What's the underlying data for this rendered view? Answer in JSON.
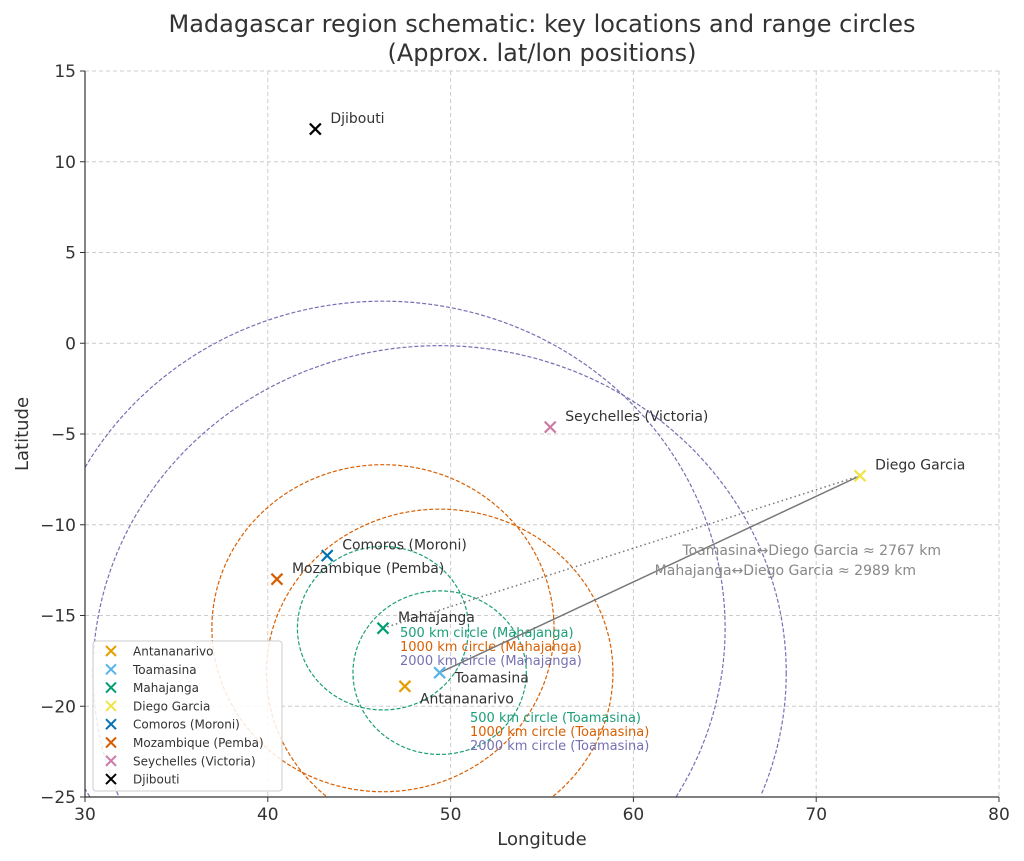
{
  "chart_data": {
    "type": "scatter",
    "title": "Madagascar region schematic: key locations and range circles",
    "subtitle": "(Approx. lat/lon positions)",
    "xlabel": "Longitude",
    "ylabel": "Latitude",
    "xlim": [
      30,
      80
    ],
    "ylim": [
      -25,
      15
    ],
    "xticks": [
      30,
      40,
      50,
      60,
      70,
      80
    ],
    "yticks": [
      15,
      10,
      5,
      0,
      -5,
      -10,
      -15,
      -20,
      -25
    ],
    "grid": true,
    "legend_position": "lower-left",
    "points": [
      {
        "name": "Antananarivo",
        "lon": 47.5,
        "lat": -18.9,
        "color": "#E69F00"
      },
      {
        "name": "Toamasina",
        "lon": 49.4,
        "lat": -18.15,
        "color": "#56B4E9"
      },
      {
        "name": "Mahajanga",
        "lon": 46.3,
        "lat": -15.7,
        "color": "#009E73"
      },
      {
        "name": "Diego Garcia",
        "lon": 72.4,
        "lat": -7.3,
        "color": "#F0E442"
      },
      {
        "name": "Comoros (Moroni)",
        "lon": 43.25,
        "lat": -11.7,
        "color": "#0072B2"
      },
      {
        "name": "Mozambique (Pemba)",
        "lon": 40.5,
        "lat": -13.0,
        "color": "#D55E00"
      },
      {
        "name": "Seychelles (Victoria)",
        "lon": 55.45,
        "lat": -4.62,
        "color": "#CC79A7"
      },
      {
        "name": "Djibouti",
        "lon": 42.6,
        "lat": 11.8,
        "color": "#000000"
      }
    ],
    "circles": [
      {
        "center": "Mahajanga",
        "lon": 46.3,
        "lat": -15.7,
        "km": 500,
        "color": "#1b9e77",
        "label": "500 km circle (Mahajanga)"
      },
      {
        "center": "Mahajanga",
        "lon": 46.3,
        "lat": -15.7,
        "km": 1000,
        "color": "#d95f02",
        "label": "1000 km circle (Mahajanga)"
      },
      {
        "center": "Mahajanga",
        "lon": 46.3,
        "lat": -15.7,
        "km": 2000,
        "color": "#7570b3",
        "label": "2000 km circle (Mahajanga)"
      },
      {
        "center": "Toamasina",
        "lon": 49.4,
        "lat": -18.15,
        "km": 500,
        "color": "#1b9e77",
        "label": "500 km circle (Toamasina)"
      },
      {
        "center": "Toamasina",
        "lon": 49.4,
        "lat": -18.15,
        "km": 1000,
        "color": "#d95f02",
        "label": "1000 km circle (Toamasina)"
      },
      {
        "center": "Toamasina",
        "lon": 49.4,
        "lat": -18.15,
        "km": 2000,
        "color": "#7570b3",
        "label": "2000 km circle (Toamasina)"
      }
    ],
    "lines": [
      {
        "from": "Toamasina",
        "to": "Diego Garcia",
        "style": "solid",
        "label": "Toamasina↔Diego Garcia ≈ 2767 km",
        "km": 2767
      },
      {
        "from": "Mahajanga",
        "to": "Diego Garcia",
        "style": "dotted",
        "label": "Mahajanga↔Diego Garcia ≈ 2989 km",
        "km": 2989
      }
    ]
  }
}
